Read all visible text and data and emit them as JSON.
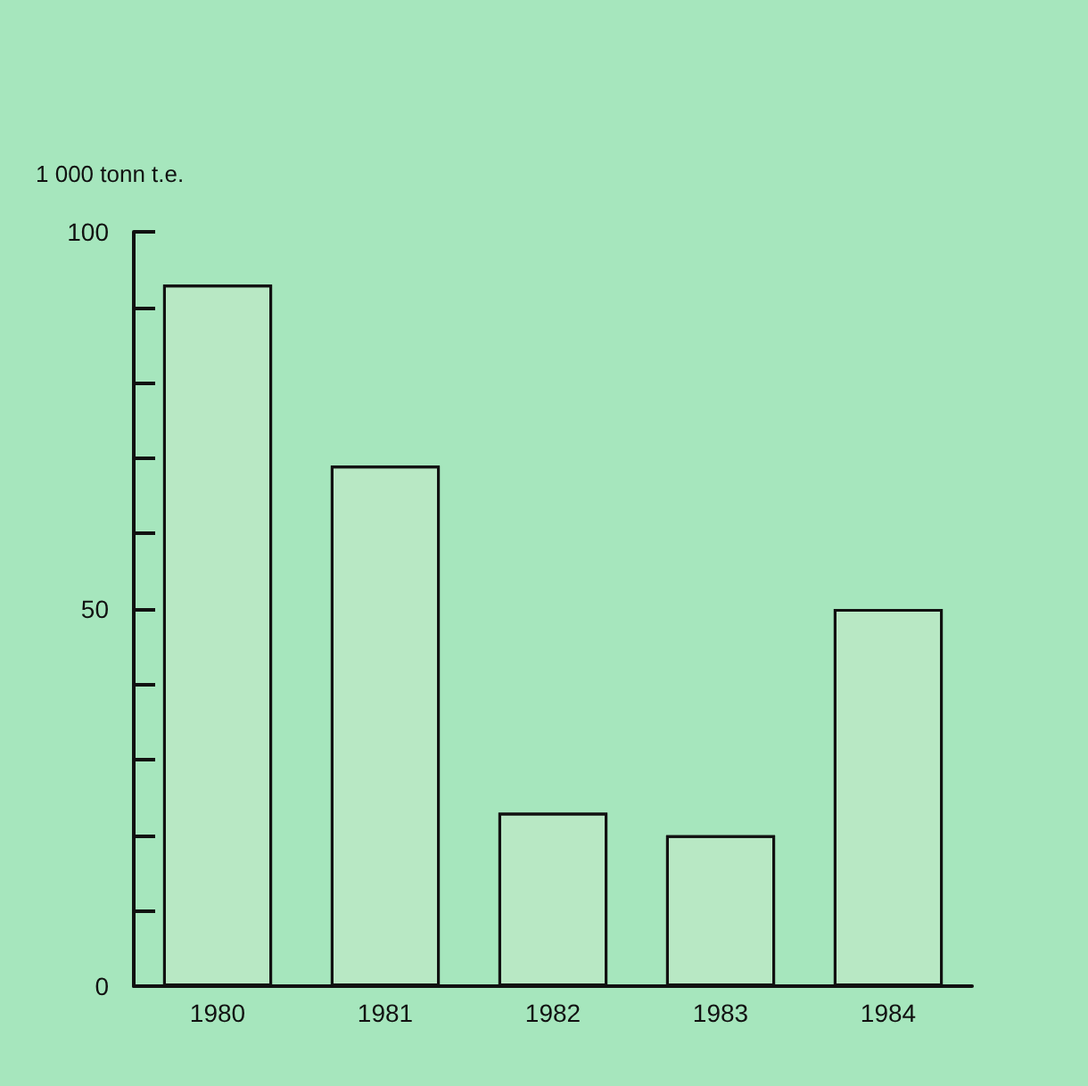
{
  "chart_data": {
    "type": "bar",
    "ylabel": "1 000 tonn t.e.",
    "categories": [
      "1980",
      "1981",
      "1982",
      "1983",
      "1984"
    ],
    "values": [
      93,
      69,
      23,
      20,
      50
    ],
    "color": "#b8e8c4",
    "ylim": [
      0,
      100
    ],
    "yticks": [
      0,
      {
        "value": 10,
        "label": null
      },
      {
        "value": 20,
        "label": null
      },
      {
        "value": 30,
        "label": null
      },
      {
        "value": 40,
        "label": null
      },
      50,
      {
        "value": 60,
        "label": null
      },
      {
        "value": 70,
        "label": null
      },
      {
        "value": 80,
        "label": null
      },
      {
        "value": 90,
        "label": null
      },
      100
    ],
    "grid": false
  }
}
